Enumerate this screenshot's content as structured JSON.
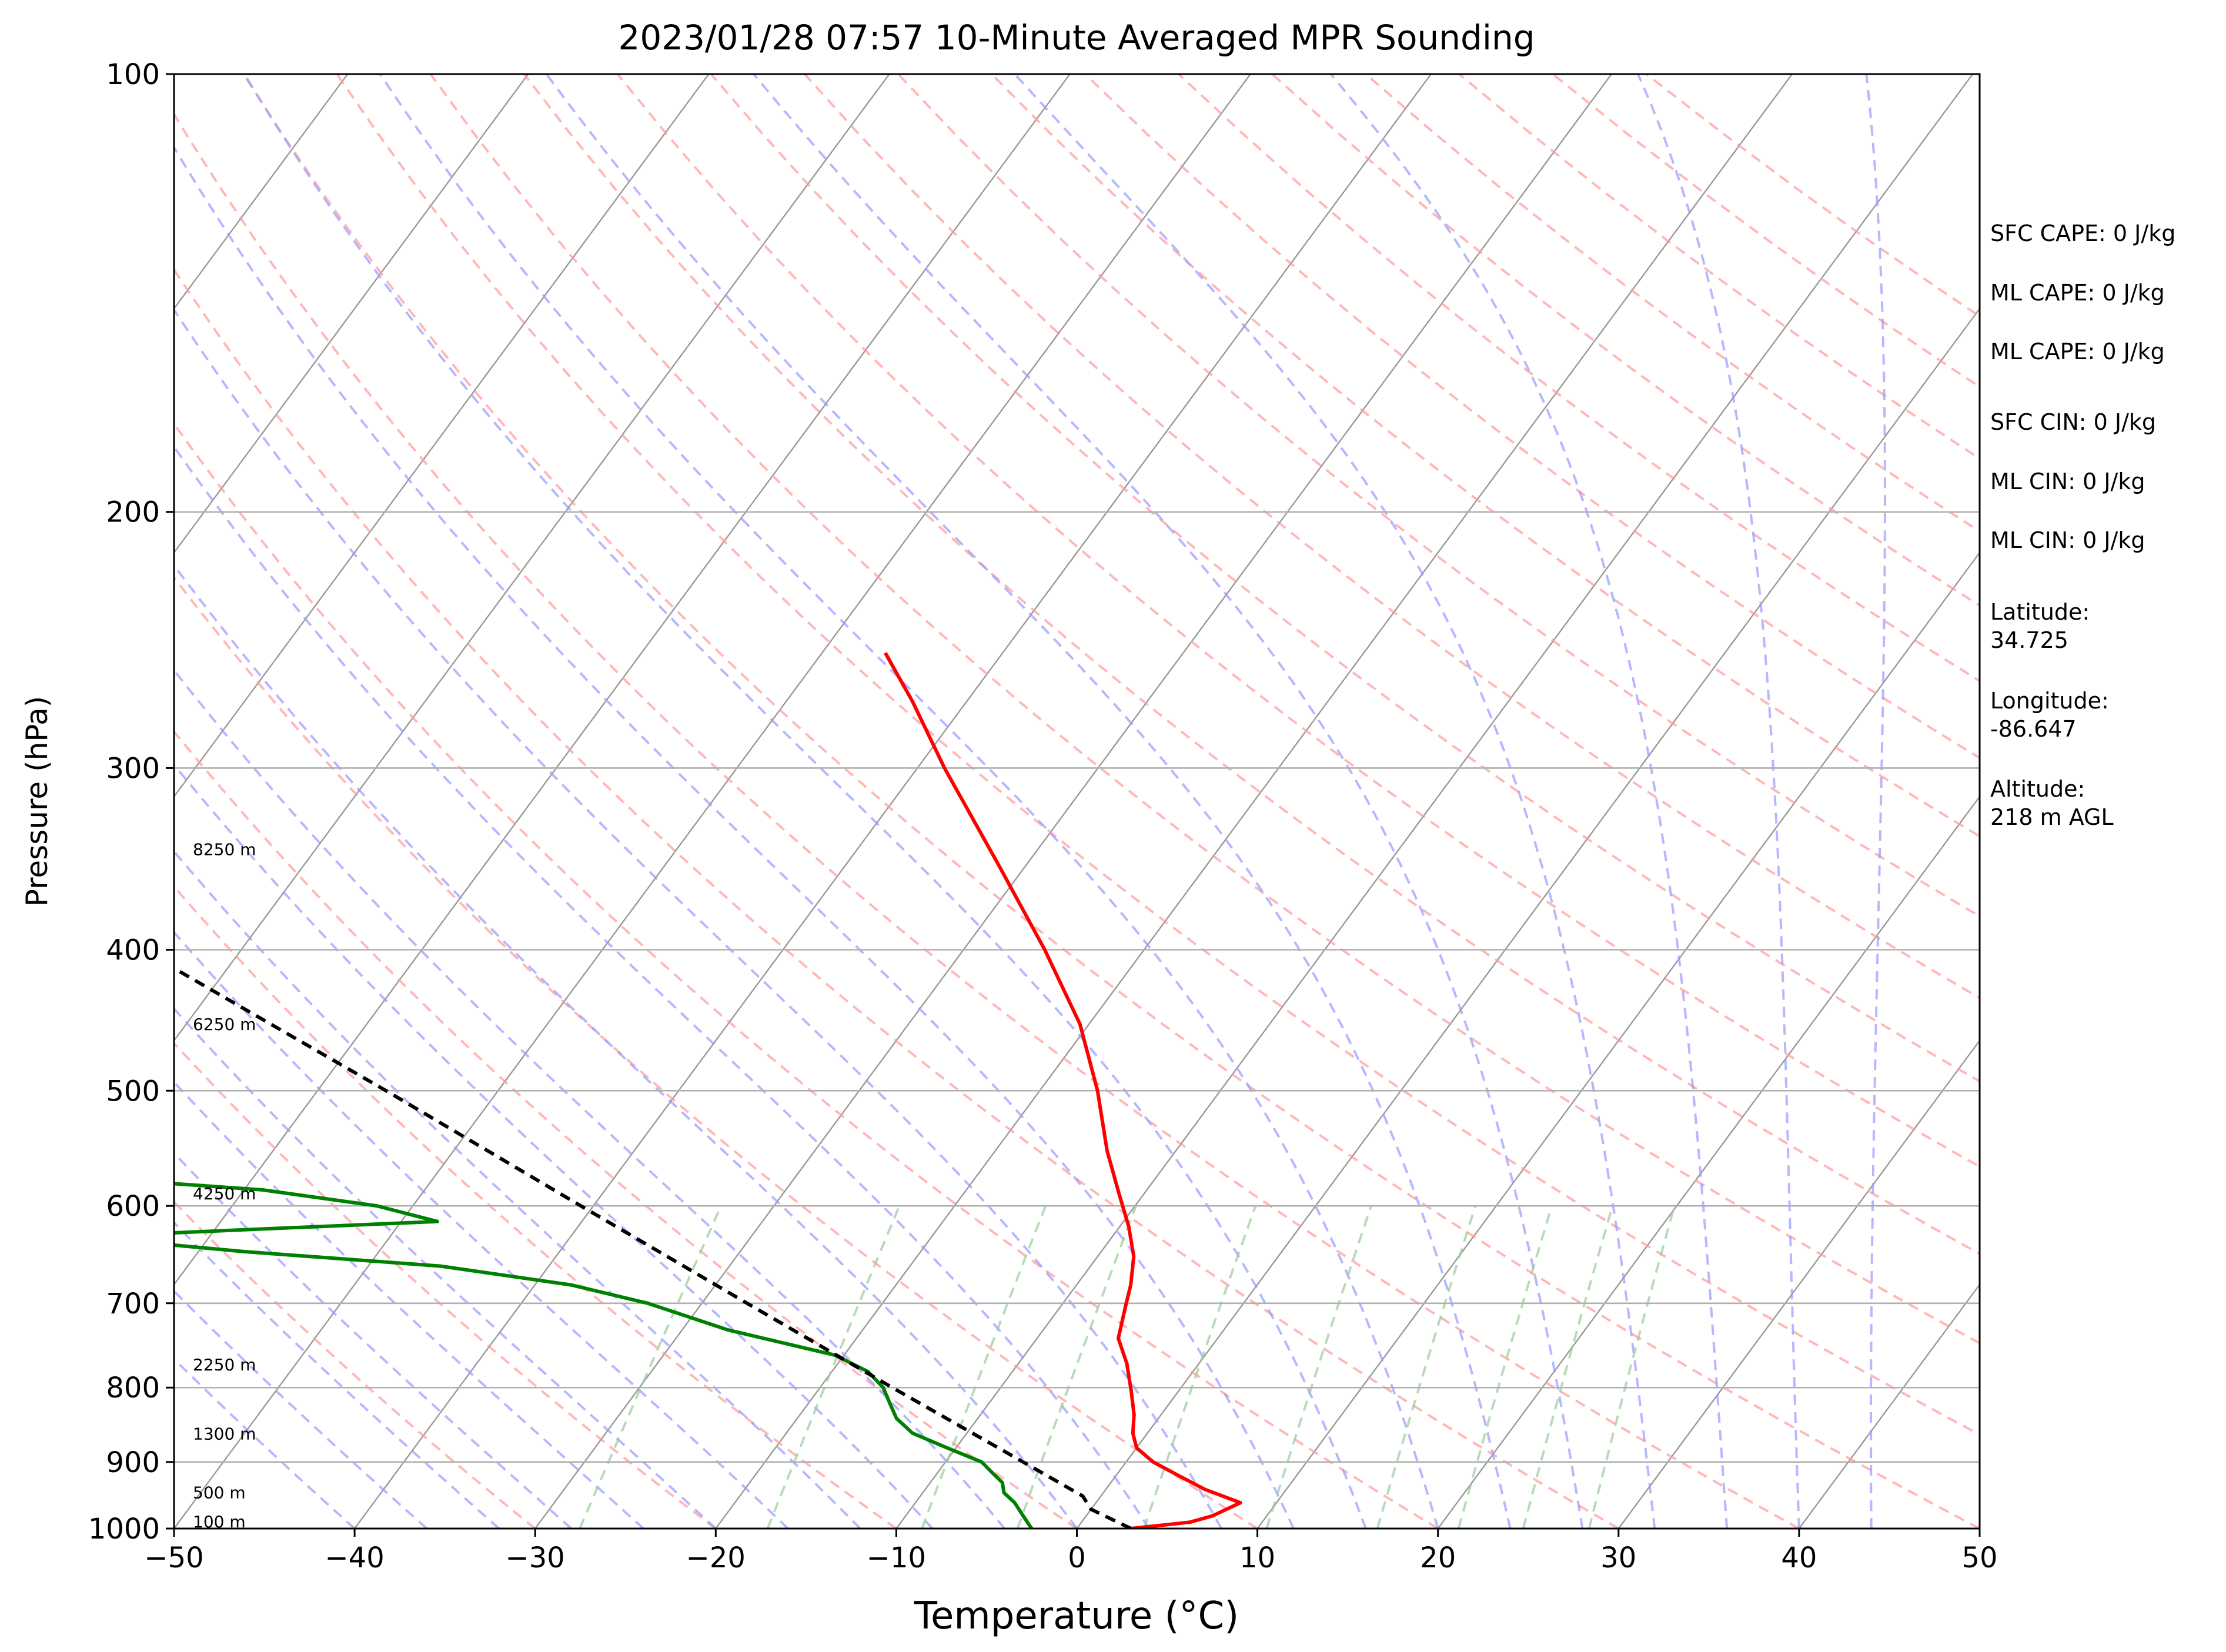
{
  "chart_data": {
    "type": "line",
    "title": "2023/01/28 07:57 10-Minute Averaged MPR Sounding",
    "xlabel": "Temperature (°C)",
    "ylabel": "Pressure (hPa)",
    "xlim": [
      -50,
      50
    ],
    "ylim": [
      1000,
      100
    ],
    "y_scale": "log",
    "skew": "skew-T (isotherms slanted)",
    "grid": true,
    "x_ticks": [
      -50,
      -40,
      -30,
      -20,
      -10,
      0,
      10,
      20,
      30,
      40,
      50
    ],
    "x_tick_labels": [
      "−50",
      "−40",
      "−30",
      "−20",
      "−10",
      "0",
      "10",
      "20",
      "30",
      "40",
      "50"
    ],
    "y_ticks": [
      1000,
      900,
      800,
      700,
      600,
      500,
      400,
      300,
      200,
      100
    ],
    "y_tick_labels": [
      "1000",
      "900",
      "800",
      "700",
      "600",
      "500",
      "400",
      "300",
      "200",
      "100"
    ],
    "series": [
      {
        "role": "temperature",
        "color": "#ff0000",
        "points": [
          [
            1000,
            3.0
          ],
          [
            990,
            6.0
          ],
          [
            980,
            7.0
          ],
          [
            960,
            8.0
          ],
          [
            940,
            5.5
          ],
          [
            920,
            3.5
          ],
          [
            900,
            1.5
          ],
          [
            880,
            0.0
          ],
          [
            860,
            -0.8
          ],
          [
            835,
            -1.5
          ],
          [
            805,
            -2.6
          ],
          [
            770,
            -4.0
          ],
          [
            740,
            -5.5
          ],
          [
            700,
            -6.5
          ],
          [
            680,
            -7.0
          ],
          [
            650,
            -8.0
          ],
          [
            620,
            -9.5
          ],
          [
            590,
            -11.3
          ],
          [
            550,
            -13.8
          ],
          [
            500,
            -16.8
          ],
          [
            450,
            -20.5
          ],
          [
            400,
            -25.5
          ],
          [
            350,
            -31.5
          ],
          [
            300,
            -38.5
          ],
          [
            270,
            -43.0
          ],
          [
            250,
            -46.5
          ]
        ]
      },
      {
        "role": "dewpoint",
        "color": "#008000",
        "points": [
          [
            1000,
            -2.5
          ],
          [
            980,
            -3.5
          ],
          [
            960,
            -4.5
          ],
          [
            945,
            -5.5
          ],
          [
            930,
            -6.0
          ],
          [
            915,
            -7.0
          ],
          [
            900,
            -8.0
          ],
          [
            880,
            -10.5
          ],
          [
            860,
            -13.0
          ],
          [
            840,
            -14.5
          ],
          [
            820,
            -15.5
          ],
          [
            800,
            -16.5
          ],
          [
            780,
            -18.0
          ],
          [
            760,
            -20.5
          ],
          [
            730,
            -27.5
          ],
          [
            700,
            -33.0
          ],
          [
            680,
            -38.0
          ],
          [
            660,
            -46.0
          ],
          [
            645,
            -57.5
          ],
          [
            630,
            -67.0
          ],
          [
            615,
            -48.0
          ],
          [
            600,
            -52.0
          ],
          [
            585,
            -59.0
          ],
          [
            575,
            -68.0
          ],
          [
            335,
            -83.0
          ],
          [
            330,
            -89.0
          ]
        ]
      },
      {
        "role": "parcel",
        "color": "#000000",
        "dashed": true,
        "points": [
          [
            1000,
            3.0
          ],
          [
            970,
            0.0
          ],
          [
            950,
            -1.0
          ],
          [
            900,
            -5.7
          ],
          [
            800,
            -16.0
          ],
          [
            700,
            -27.5
          ],
          [
            600,
            -40.7
          ],
          [
            500,
            -56.2
          ],
          [
            400,
            -75.5
          ],
          [
            300,
            -100.3
          ],
          [
            270,
            -109.0
          ]
        ]
      }
    ],
    "height_labels": [
      {
        "p": 1000,
        "text": "100 m"
      },
      {
        "p": 955,
        "text": "500 m"
      },
      {
        "p": 870,
        "text": "1300 m"
      },
      {
        "p": 780,
        "text": "2250 m"
      },
      {
        "p": 595,
        "text": "4250 m"
      },
      {
        "p": 455,
        "text": "6250 m"
      },
      {
        "p": 345,
        "text": "8250 m"
      }
    ],
    "annotations": [
      "SFC CAPE: 0 J/kg",
      "ML CAPE: 0 J/kg",
      "ML CAPE: 0 J/kg",
      "SFC CIN: 0 J/kg",
      "ML CIN: 0 J/kg",
      "ML CIN: 0 J/kg",
      "Latitude:\n34.725",
      "Longitude:\n-86.647",
      "Altitude:\n218 m AGL"
    ],
    "background_lines": {
      "dry_adiabats_color": "#ff9999",
      "moist_adiabats_color": "#9999ff",
      "mixing_ratio_color": "#99cc99",
      "isotherm_color": "#999999"
    }
  }
}
